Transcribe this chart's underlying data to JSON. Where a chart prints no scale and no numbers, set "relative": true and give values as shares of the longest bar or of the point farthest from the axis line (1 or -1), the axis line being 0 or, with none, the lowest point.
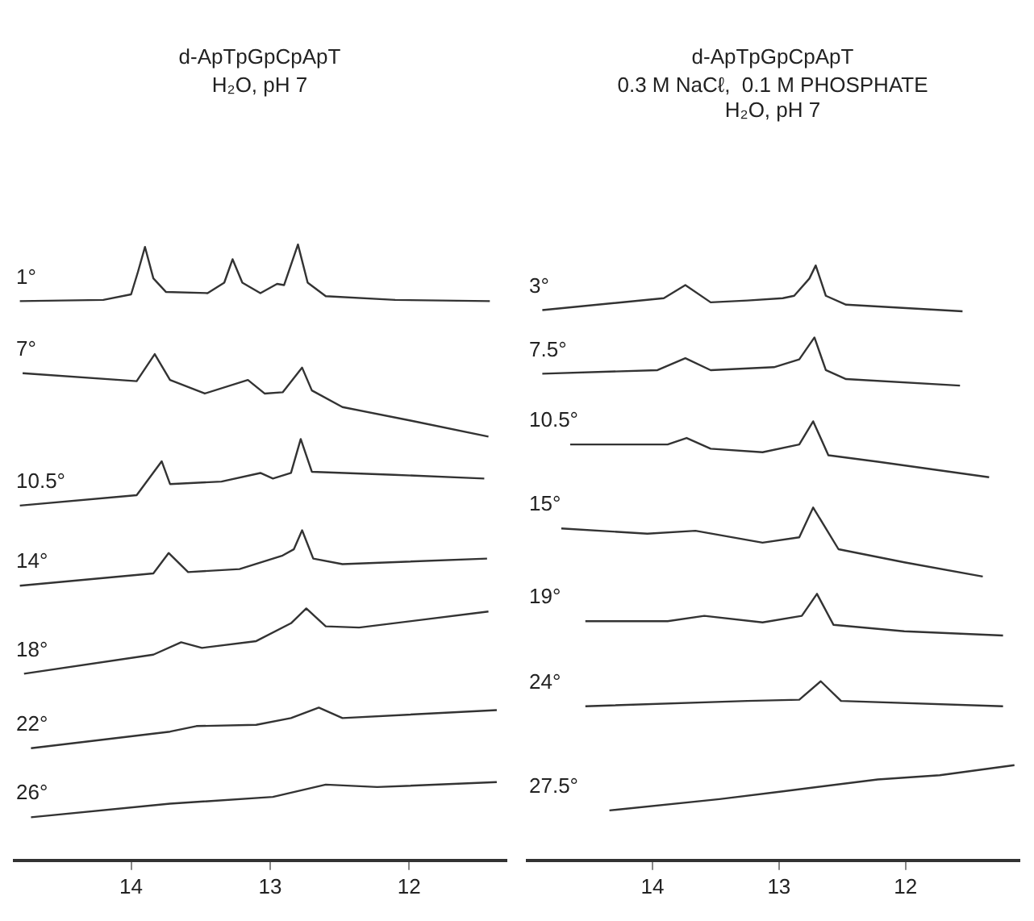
{
  "chart_data": [
    {
      "type": "line",
      "title": "d-ApTpGpCpApT",
      "subtitle": "H₂O, pH 7",
      "relative": true,
      "xlim": [
        14.85,
        11.3
      ],
      "xticks": [
        14,
        13,
        12
      ],
      "grid": false,
      "legend": false,
      "marker": "none",
      "line_style": "solid",
      "series": [
        {
          "name": "1°",
          "color": "#333333",
          "x": [
            14.8,
            14.2,
            14.0,
            13.95,
            13.9,
            13.84,
            13.75,
            13.45,
            13.33,
            13.27,
            13.2,
            13.07,
            12.95,
            12.9,
            12.8,
            12.73,
            12.6,
            12.1,
            11.42
          ],
          "values": [
            0.908,
            0.91,
            0.919,
            0.956,
            0.996,
            0.945,
            0.923,
            0.921,
            0.938,
            0.976,
            0.938,
            0.921,
            0.936,
            0.934,
            1.0,
            0.938,
            0.916,
            0.91,
            0.908
          ]
        },
        {
          "name": "7°",
          "color": "#333333",
          "x": [
            14.78,
            13.96,
            13.83,
            13.72,
            13.47,
            13.16,
            13.04,
            12.91,
            12.77,
            12.7,
            12.48,
            11.99,
            11.43
          ],
          "values": [
            0.791,
            0.778,
            0.822,
            0.78,
            0.758,
            0.78,
            0.758,
            0.76,
            0.8,
            0.763,
            0.736,
            0.714,
            0.688
          ]
        },
        {
          "name": "10.5°",
          "color": "#333333",
          "x": [
            14.8,
            13.96,
            13.78,
            13.72,
            13.35,
            13.07,
            12.98,
            12.85,
            12.78,
            12.7,
            12.11,
            11.46
          ],
          "values": [
            0.576,
            0.593,
            0.648,
            0.611,
            0.615,
            0.629,
            0.62,
            0.629,
            0.684,
            0.631,
            0.626,
            0.62
          ]
        },
        {
          "name": "14°",
          "color": "#333333",
          "x": [
            14.8,
            13.84,
            13.73,
            13.59,
            13.22,
            12.91,
            12.83,
            12.77,
            12.69,
            12.48,
            11.44
          ],
          "values": [
            0.446,
            0.466,
            0.499,
            0.468,
            0.473,
            0.495,
            0.505,
            0.536,
            0.49,
            0.481,
            0.49
          ]
        },
        {
          "name": "18°",
          "color": "#333333",
          "x": [
            14.77,
            13.84,
            13.64,
            13.49,
            13.1,
            12.85,
            12.74,
            12.6,
            12.36,
            11.43
          ],
          "values": [
            0.303,
            0.334,
            0.354,
            0.345,
            0.356,
            0.385,
            0.409,
            0.38,
            0.378,
            0.404
          ]
        },
        {
          "name": "22°",
          "color": "#333333",
          "x": [
            14.72,
            13.72,
            13.53,
            13.1,
            12.85,
            12.65,
            12.48,
            11.37
          ],
          "values": [
            0.182,
            0.209,
            0.218,
            0.22,
            0.231,
            0.248,
            0.231,
            0.244
          ]
        },
        {
          "name": "26°",
          "color": "#333333",
          "x": [
            14.72,
            13.72,
            12.98,
            12.6,
            12.23,
            11.37
          ],
          "values": [
            0.07,
            0.092,
            0.103,
            0.123,
            0.119,
            0.127
          ]
        }
      ]
    },
    {
      "type": "line",
      "title": "d-ApTpGpCpApT",
      "subtitle": "0.3 M NaCℓ,  0.1 M PHOSPHATE\nH₂O, pH 7",
      "relative": true,
      "xlim": [
        15.0,
        11.1
      ],
      "xticks": [
        14,
        13,
        12
      ],
      "grid": false,
      "legend": false,
      "marker": "none",
      "line_style": "solid",
      "series": [
        {
          "name": "3°",
          "color": "#333333",
          "x": [
            14.87,
            13.91,
            13.74,
            13.54,
            13.25,
            12.97,
            12.88,
            12.76,
            12.71,
            12.63,
            12.47,
            11.55
          ],
          "values": [
            0.925,
            0.945,
            0.967,
            0.938,
            0.941,
            0.945,
            0.949,
            0.978,
            1.0,
            0.949,
            0.934,
            0.923
          ]
        },
        {
          "name": "7.5°",
          "color": "#333333",
          "x": [
            14.87,
            13.96,
            13.74,
            13.54,
            13.04,
            12.84,
            12.72,
            12.63,
            12.47,
            11.57
          ],
          "values": [
            0.818,
            0.824,
            0.844,
            0.824,
            0.829,
            0.842,
            0.879,
            0.824,
            0.809,
            0.798
          ]
        },
        {
          "name": "10.5°",
          "color": "#333333",
          "x": [
            14.65,
            13.88,
            13.73,
            13.54,
            13.13,
            12.84,
            12.73,
            12.61,
            12.22,
            11.34
          ],
          "values": [
            0.699,
            0.699,
            0.71,
            0.692,
            0.686,
            0.699,
            0.738,
            0.681,
            0.67,
            0.644
          ]
        },
        {
          "name": "15°",
          "color": "#333333",
          "x": [
            14.72,
            14.04,
            13.66,
            13.13,
            12.84,
            12.73,
            12.53,
            12.01,
            11.39
          ],
          "values": [
            0.558,
            0.549,
            0.554,
            0.534,
            0.543,
            0.593,
            0.523,
            0.501,
            0.477
          ]
        },
        {
          "name": "19°",
          "color": "#333333",
          "x": [
            14.53,
            13.88,
            13.59,
            13.13,
            12.82,
            12.7,
            12.57,
            12.01,
            11.23
          ],
          "values": [
            0.402,
            0.402,
            0.411,
            0.4,
            0.411,
            0.448,
            0.396,
            0.385,
            0.378
          ]
        },
        {
          "name": "24°",
          "color": "#333333",
          "x": [
            14.53,
            13.25,
            12.84,
            12.67,
            12.51,
            11.23
          ],
          "values": [
            0.259,
            0.268,
            0.27,
            0.301,
            0.268,
            0.259
          ]
        },
        {
          "name": "27.5°",
          "color": "#333333",
          "x": [
            14.34,
            13.47,
            12.97,
            12.22,
            11.73,
            11.14
          ],
          "values": [
            0.084,
            0.103,
            0.116,
            0.136,
            0.143,
            0.16
          ]
        }
      ]
    }
  ]
}
